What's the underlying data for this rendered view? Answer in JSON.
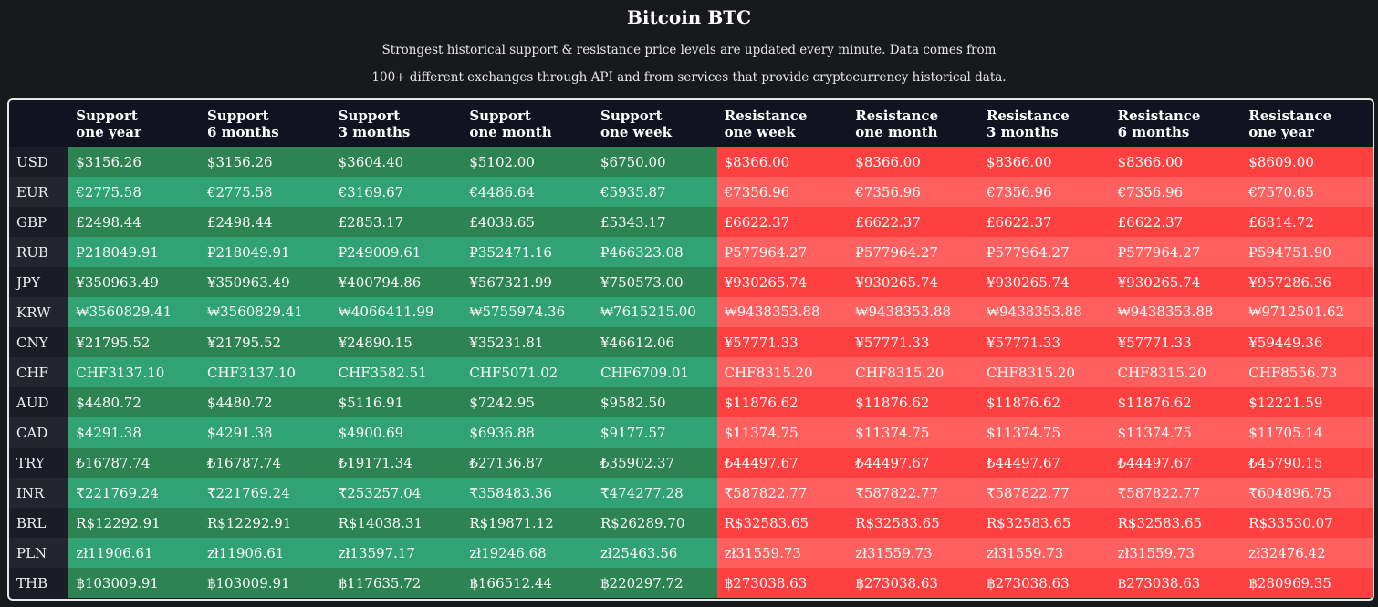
{
  "page": {
    "title": "Bitcoin BTC",
    "description_line1": "Strongest historical support & resistance price levels are updated every minute. Data comes from",
    "description_line2": "100+ different exchanges through API and from services that provide cryptocurrency historical data."
  },
  "colors": {
    "background": "#18191d",
    "support_dark": "#2d8352",
    "support_light": "#31a274",
    "resistance_dark": "#fe4140",
    "resistance_light": "#fe605f",
    "header_bg": "#111420"
  },
  "table": {
    "headers": [
      {
        "line1": "Support",
        "line2": "one year"
      },
      {
        "line1": "Support",
        "line2": "6 months"
      },
      {
        "line1": "Support",
        "line2": "3 months"
      },
      {
        "line1": "Support",
        "line2": "one month"
      },
      {
        "line1": "Support",
        "line2": "one week"
      },
      {
        "line1": "Resistance",
        "line2": "one week"
      },
      {
        "line1": "Resistance",
        "line2": "one month"
      },
      {
        "line1": "Resistance",
        "line2": "3 months"
      },
      {
        "line1": "Resistance",
        "line2": "6 months"
      },
      {
        "line1": "Resistance",
        "line2": "one year"
      }
    ],
    "rows": [
      {
        "currency": "USD",
        "values": [
          "$3156.26",
          "$3156.26",
          "$3604.40",
          "$5102.00",
          "$6750.00",
          "$8366.00",
          "$8366.00",
          "$8366.00",
          "$8366.00",
          "$8609.00"
        ]
      },
      {
        "currency": "EUR",
        "values": [
          "€2775.58",
          "€2775.58",
          "€3169.67",
          "€4486.64",
          "€5935.87",
          "€7356.96",
          "€7356.96",
          "€7356.96",
          "€7356.96",
          "€7570.65"
        ]
      },
      {
        "currency": "GBP",
        "values": [
          "£2498.44",
          "£2498.44",
          "£2853.17",
          "£4038.65",
          "£5343.17",
          "£6622.37",
          "£6622.37",
          "£6622.37",
          "£6622.37",
          "£6814.72"
        ]
      },
      {
        "currency": "RUB",
        "values": [
          "₽218049.91",
          "₽218049.91",
          "₽249009.61",
          "₽352471.16",
          "₽466323.08",
          "₽577964.27",
          "₽577964.27",
          "₽577964.27",
          "₽577964.27",
          "₽594751.90"
        ]
      },
      {
        "currency": "JPY",
        "values": [
          "¥350963.49",
          "¥350963.49",
          "¥400794.86",
          "¥567321.99",
          "¥750573.00",
          "¥930265.74",
          "¥930265.74",
          "¥930265.74",
          "¥930265.74",
          "¥957286.36"
        ]
      },
      {
        "currency": "KRW",
        "values": [
          "₩3560829.41",
          "₩3560829.41",
          "₩4066411.99",
          "₩5755974.36",
          "₩7615215.00",
          "₩9438353.88",
          "₩9438353.88",
          "₩9438353.88",
          "₩9438353.88",
          "₩9712501.62"
        ]
      },
      {
        "currency": "CNY",
        "values": [
          "¥21795.52",
          "¥21795.52",
          "¥24890.15",
          "¥35231.81",
          "¥46612.06",
          "¥57771.33",
          "¥57771.33",
          "¥57771.33",
          "¥57771.33",
          "¥59449.36"
        ]
      },
      {
        "currency": "CHF",
        "values": [
          "CHF3137.10",
          "CHF3137.10",
          "CHF3582.51",
          "CHF5071.02",
          "CHF6709.01",
          "CHF8315.20",
          "CHF8315.20",
          "CHF8315.20",
          "CHF8315.20",
          "CHF8556.73"
        ]
      },
      {
        "currency": "AUD",
        "values": [
          "$4480.72",
          "$4480.72",
          "$5116.91",
          "$7242.95",
          "$9582.50",
          "$11876.62",
          "$11876.62",
          "$11876.62",
          "$11876.62",
          "$12221.59"
        ]
      },
      {
        "currency": "CAD",
        "values": [
          "$4291.38",
          "$4291.38",
          "$4900.69",
          "$6936.88",
          "$9177.57",
          "$11374.75",
          "$11374.75",
          "$11374.75",
          "$11374.75",
          "$11705.14"
        ]
      },
      {
        "currency": "TRY",
        "values": [
          "₺16787.74",
          "₺16787.74",
          "₺19171.34",
          "₺27136.87",
          "₺35902.37",
          "₺44497.67",
          "₺44497.67",
          "₺44497.67",
          "₺44497.67",
          "₺45790.15"
        ]
      },
      {
        "currency": "INR",
        "values": [
          "₹221769.24",
          "₹221769.24",
          "₹253257.04",
          "₹358483.36",
          "₹474277.28",
          "₹587822.77",
          "₹587822.77",
          "₹587822.77",
          "₹587822.77",
          "₹604896.75"
        ]
      },
      {
        "currency": "BRL",
        "values": [
          "R$12292.91",
          "R$12292.91",
          "R$14038.31",
          "R$19871.12",
          "R$26289.70",
          "R$32583.65",
          "R$32583.65",
          "R$32583.65",
          "R$32583.65",
          "R$33530.07"
        ]
      },
      {
        "currency": "PLN",
        "values": [
          "zł11906.61",
          "zł11906.61",
          "zł13597.17",
          "zł19246.68",
          "zł25463.56",
          "zł31559.73",
          "zł31559.73",
          "zł31559.73",
          "zł31559.73",
          "zł32476.42"
        ]
      },
      {
        "currency": "THB",
        "values": [
          "฿103009.91",
          "฿103009.91",
          "฿117635.72",
          "฿166512.44",
          "฿220297.72",
          "฿273038.63",
          "฿273038.63",
          "฿273038.63",
          "฿273038.63",
          "฿280969.35"
        ]
      }
    ]
  }
}
